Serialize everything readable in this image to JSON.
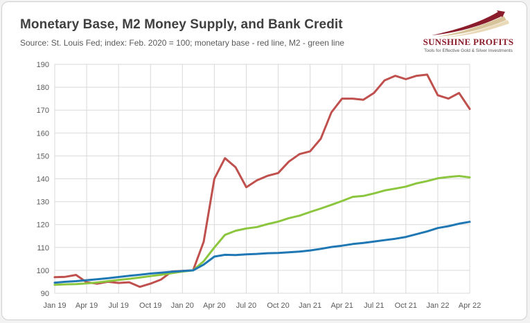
{
  "title": "Monetary Base, M2 Money Supply, and Bank Credit",
  "subtitle": "Source: St. Louis Fed; index: Feb. 2020 = 100; monetary base - red line, M2 - green line",
  "logo": {
    "name": "SUNSHINE PROFITS",
    "tagline": "Tools for Effective Gold & Silver Investments",
    "icon": "rising-swoosh-icon"
  },
  "chart_data": {
    "type": "line",
    "ylim": [
      90,
      190
    ],
    "yticks": [
      90,
      100,
      110,
      120,
      130,
      140,
      150,
      160,
      170,
      180,
      190
    ],
    "xticks": [
      "Jan 19",
      "Apr 19",
      "Jul 19",
      "Oct 19",
      "Jan 20",
      "Apr 20",
      "Jul 20",
      "Oct 20",
      "Jan 21",
      "Apr 21",
      "Jul 21",
      "Oct 21",
      "Jan 22",
      "Apr 22"
    ],
    "grid": true,
    "x": [
      "2019-01",
      "2019-02",
      "2019-03",
      "2019-04",
      "2019-05",
      "2019-06",
      "2019-07",
      "2019-08",
      "2019-09",
      "2019-10",
      "2019-11",
      "2019-12",
      "2020-01",
      "2020-02",
      "2020-03",
      "2020-04",
      "2020-05",
      "2020-06",
      "2020-07",
      "2020-08",
      "2020-09",
      "2020-10",
      "2020-11",
      "2020-12",
      "2021-01",
      "2021-02",
      "2021-03",
      "2021-04",
      "2021-05",
      "2021-06",
      "2021-07",
      "2021-08",
      "2021-09",
      "2021-10",
      "2021-11",
      "2021-12",
      "2022-01",
      "2022-02",
      "2022-03",
      "2022-04"
    ],
    "series": [
      {
        "color": "#c0504d",
        "values": [
          97.0,
          97.2,
          98.0,
          94.8,
          94.2,
          95.0,
          94.5,
          94.8,
          92.8,
          94.2,
          96.0,
          99.5,
          99.8,
          100.0,
          112.5,
          140.0,
          149.0,
          145.0,
          136.3,
          139.3,
          141.3,
          142.5,
          147.5,
          150.8,
          152.0,
          157.5,
          169.0,
          175.0,
          175.0,
          174.5,
          177.5,
          183.0,
          185.0,
          183.5,
          185.0,
          185.5,
          176.5,
          175.0,
          177.5,
          170.5
        ]
      },
      {
        "color": "#8cc63f",
        "values": [
          93.7,
          93.9,
          94.0,
          94.3,
          94.7,
          95.3,
          95.8,
          96.3,
          96.9,
          97.5,
          98.1,
          98.8,
          99.5,
          100.0,
          104.0,
          110.0,
          115.5,
          117.3,
          118.3,
          118.9,
          120.2,
          121.3,
          122.8,
          123.9,
          125.5,
          127.0,
          128.6,
          130.3,
          132.1,
          132.5,
          133.6,
          134.9,
          135.7,
          136.6,
          138.0,
          139.0,
          140.2,
          140.8,
          141.2,
          140.6
        ]
      },
      {
        "color": "#1f77b4",
        "values": [
          94.6,
          95.0,
          95.3,
          95.7,
          96.1,
          96.6,
          97.1,
          97.6,
          98.1,
          98.6,
          99.0,
          99.4,
          99.7,
          100.0,
          102.5,
          106.0,
          106.8,
          106.7,
          107.0,
          107.2,
          107.5,
          107.6,
          107.9,
          108.2,
          108.7,
          109.4,
          110.2,
          110.8,
          111.5,
          112.0,
          112.6,
          113.2,
          113.8,
          114.6,
          115.8,
          117.0,
          118.5,
          119.3,
          120.4,
          121.2
        ]
      }
    ]
  }
}
